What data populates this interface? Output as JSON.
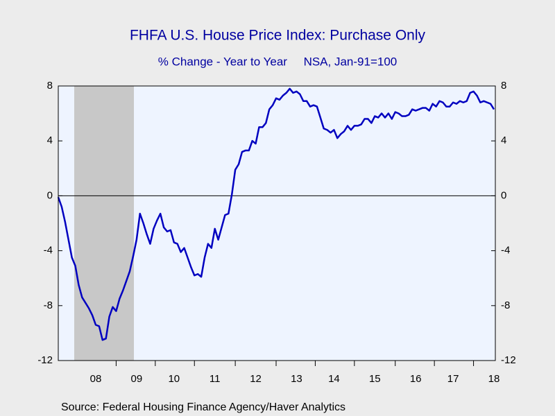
{
  "chart_data": {
    "type": "line",
    "title": "FHFA U.S. House Price Index: Purchase Only",
    "subtitle": "% Change - Year to Year     NSA, Jan-91=100",
    "source": "Source:  Federal Housing Finance Agency/Haver Analytics",
    "categories": [
      null,
      null,
      null,
      null,
      null,
      null,
      null,
      null,
      null,
      null,
      null,
      "08",
      null,
      null,
      null,
      null,
      null,
      null,
      null,
      null,
      null,
      null,
      null,
      "09",
      null,
      null,
      null,
      null,
      null,
      null,
      null,
      null,
      null,
      null,
      "10",
      null,
      null,
      null,
      null,
      null,
      null,
      null,
      null,
      null,
      null,
      null,
      "11",
      null,
      null,
      null,
      null,
      null,
      null,
      null,
      null,
      null,
      null,
      null,
      "12",
      null,
      null,
      null,
      null,
      null,
      null,
      null,
      null,
      null,
      null,
      null,
      "13",
      null,
      null,
      null,
      null,
      null,
      null,
      null,
      null,
      null,
      null,
      "14",
      null,
      null,
      null,
      null,
      null,
      null,
      null,
      null,
      null,
      null,
      null,
      "15",
      null,
      null,
      null,
      null,
      null,
      null,
      null,
      null,
      null,
      null,
      null,
      "16",
      null,
      null,
      null,
      null,
      null,
      null,
      null,
      null,
      null,
      null,
      "17",
      null,
      null,
      null,
      null,
      null,
      null,
      null,
      null,
      null,
      null,
      null,
      "18"
    ],
    "series": [
      {
        "color": "#0000c0",
        "values": [
          -0.1,
          -0.8,
          -1.9,
          -3.2,
          -4.5,
          -5.1,
          -6.5,
          -7.4,
          -7.8,
          -8.2,
          -8.7,
          -9.4,
          -9.5,
          -10.5,
          -10.4,
          -8.8,
          -8.1,
          -8.4,
          -7.5,
          -6.9,
          -6.2,
          -5.5,
          -4.4,
          -3.2,
          -1.3,
          -2.0,
          -2.8,
          -3.5,
          -2.4,
          -1.8,
          -1.3,
          -2.3,
          -2.6,
          -2.5,
          -3.4,
          -3.5,
          -4.1,
          -3.8,
          -4.5,
          -5.2,
          -5.8,
          -5.7,
          -5.9,
          -4.5,
          -3.5,
          -3.8,
          -2.4,
          -3.2,
          -2.3,
          -1.4,
          -1.3,
          0.1,
          1.9,
          2.3,
          3.2,
          3.3,
          3.3,
          4.0,
          3.8,
          5.0,
          5.0,
          5.3,
          6.3,
          6.6,
          7.1,
          7.0,
          7.3,
          7.5,
          7.8,
          7.5,
          7.6,
          7.4,
          6.9,
          6.9,
          6.5,
          6.6,
          6.5,
          5.7,
          4.9,
          4.8,
          4.6,
          4.8,
          4.2,
          4.5,
          4.7,
          5.1,
          4.8,
          5.1,
          5.1,
          5.2,
          5.6,
          5.6,
          5.3,
          5.8,
          5.7,
          6.0,
          5.7,
          6.0,
          5.6,
          6.1,
          6.0,
          5.8,
          5.8,
          5.9,
          6.3,
          6.2,
          6.3,
          6.4,
          6.4,
          6.2,
          6.7,
          6.5,
          6.9,
          6.8,
          6.5,
          6.5,
          6.8,
          6.7,
          6.9,
          6.8,
          6.9,
          7.5,
          7.6,
          7.3,
          6.8,
          6.9,
          6.8,
          6.7,
          6.3
        ]
      }
    ],
    "ylim": [
      -12,
      8
    ],
    "yticks": [
      -12,
      -8,
      -4,
      0,
      4,
      8
    ],
    "y2lim": [
      -12,
      8
    ],
    "y2ticks": [
      -12,
      -8,
      -4,
      0,
      4,
      8
    ]
  }
}
